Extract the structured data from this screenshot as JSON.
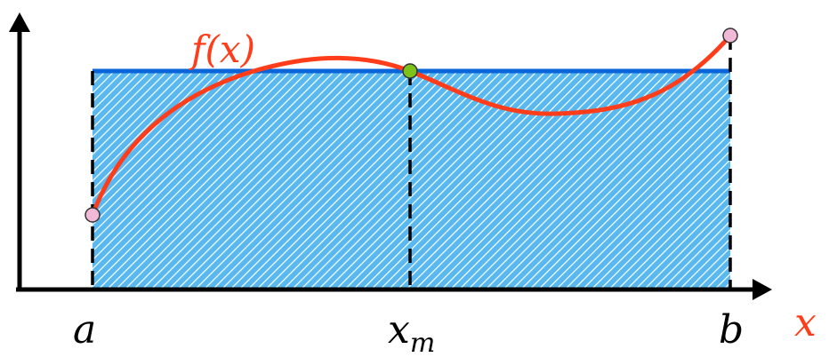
{
  "labels": {
    "function": "f(x)",
    "a": "a",
    "x_m": "x",
    "x_m_subscript": "m",
    "b": "b",
    "x_axis": "x"
  },
  "colors": {
    "axis": "#000000",
    "curve": "#ff3d1a",
    "mean_line": "#0a66d8",
    "hatch_bg": "#59b8f0",
    "hatch_line": "#ffffff",
    "endpoint_marker": "#f2b8d8",
    "mean_marker": "#7cc21a",
    "x_axis_label": "#ff3d1a",
    "function_label": "#ff3d1a"
  }
}
